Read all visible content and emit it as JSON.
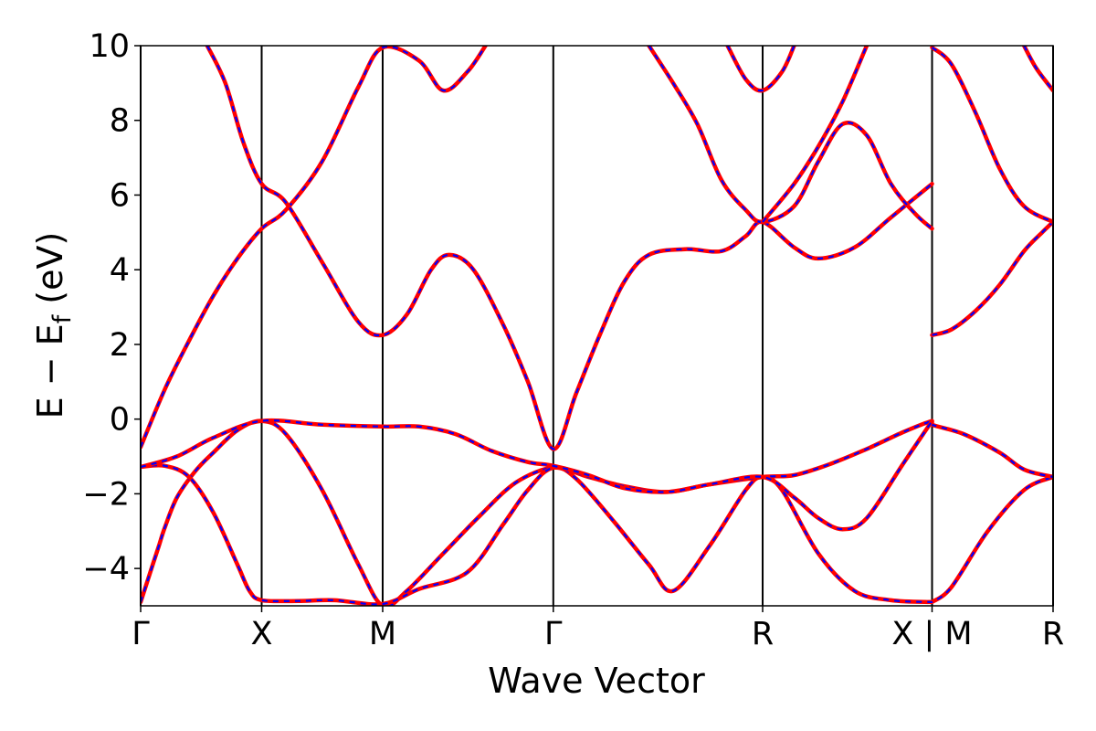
{
  "chart_data": {
    "type": "line",
    "title": "",
    "xlabel": "Wave Vector",
    "ylabel": {
      "main": "E − E",
      "sub": "f",
      "unit": " (eV)"
    },
    "ylim": [
      -5,
      10
    ],
    "yticks": [
      -4,
      -2,
      0,
      2,
      4,
      6,
      8,
      10
    ],
    "ytick_labels": [
      "−4",
      "−2",
      "0",
      "2",
      "4",
      "6",
      "8",
      "10"
    ],
    "kpoints": [
      {
        "label": "Γ",
        "x": 0.0
      },
      {
        "label": "X",
        "x": 1.0
      },
      {
        "label": "M",
        "x": 2.0
      },
      {
        "label": "Γ",
        "x": 3.41
      },
      {
        "label": "R",
        "x": 5.14
      },
      {
        "label": "X | M",
        "x": 6.54
      },
      {
        "label": "R",
        "x": 7.54
      }
    ],
    "xlim": [
      0,
      7.54
    ],
    "colors": {
      "primary": "#ff0000",
      "overlay": "#0000ff"
    },
    "series_style": "red solid with blue dashed overlay",
    "bands": [
      [
        [
          0,
          -4.9
        ],
        [
          0.05,
          -4.4
        ],
        [
          0.1,
          -3.9
        ],
        [
          0.15,
          -3.4
        ],
        [
          0.2,
          -2.9
        ],
        [
          0.3,
          -2.1
        ],
        [
          0.45,
          -1.4
        ],
        [
          0.6,
          -0.9
        ],
        [
          0.8,
          -0.3
        ],
        [
          1.0,
          -0.05
        ],
        [
          1.2,
          -0.4
        ],
        [
          1.5,
          -1.9
        ],
        [
          1.8,
          -3.9
        ],
        [
          2.0,
          -5.0
        ],
        [
          2.2,
          -4.6
        ],
        [
          2.5,
          -3.6
        ],
        [
          2.8,
          -2.6
        ],
        [
          3.1,
          -1.7
        ],
        [
          3.41,
          -1.3
        ],
        [
          3.6,
          -1.6
        ],
        [
          3.9,
          -2.7
        ],
        [
          4.2,
          -3.9
        ],
        [
          4.4,
          -4.6
        ],
        [
          4.7,
          -3.4
        ],
        [
          5.0,
          -1.9
        ],
        [
          5.14,
          -1.55
        ],
        [
          5.3,
          -1.9
        ],
        [
          5.6,
          -3.6
        ],
        [
          5.9,
          -4.6
        ],
        [
          6.2,
          -4.85
        ],
        [
          6.54,
          -4.9
        ],
        [
          6.54,
          -4.9
        ],
        [
          6.7,
          -4.5
        ],
        [
          7.0,
          -3.0
        ],
        [
          7.3,
          -1.9
        ],
        [
          7.54,
          -1.55
        ]
      ],
      [
        [
          0,
          -1.28
        ],
        [
          0.2,
          -1.25
        ],
        [
          0.4,
          -1.55
        ],
        [
          0.6,
          -2.5
        ],
        [
          0.8,
          -3.9
        ],
        [
          0.9,
          -4.6
        ],
        [
          1.0,
          -4.85
        ],
        [
          1.3,
          -4.87
        ],
        [
          1.6,
          -4.85
        ],
        [
          2.0,
          -4.95
        ],
        [
          2.3,
          -4.55
        ],
        [
          2.7,
          -4.1
        ],
        [
          3.0,
          -2.8
        ],
        [
          3.2,
          -1.9
        ],
        [
          3.41,
          -1.3
        ],
        [
          3.7,
          -1.55
        ],
        [
          4.0,
          -1.8
        ],
        [
          4.35,
          -1.95
        ],
        [
          4.7,
          -1.75
        ],
        [
          5.14,
          -1.55
        ],
        [
          5.4,
          -1.5
        ],
        [
          5.7,
          -1.2
        ],
        [
          6.0,
          -0.8
        ],
        [
          6.3,
          -0.35
        ],
        [
          6.54,
          -0.05
        ],
        [
          6.54,
          -0.15
        ],
        [
          6.8,
          -0.4
        ],
        [
          7.1,
          -0.9
        ],
        [
          7.3,
          -1.35
        ],
        [
          7.54,
          -1.55
        ]
      ],
      [
        [
          0,
          -1.28
        ],
        [
          0.3,
          -1.0
        ],
        [
          0.6,
          -0.5
        ],
        [
          1.0,
          -0.05
        ],
        [
          1.5,
          -0.15
        ],
        [
          2.0,
          -0.2
        ],
        [
          2.3,
          -0.2
        ],
        [
          2.6,
          -0.4
        ],
        [
          2.9,
          -0.85
        ],
        [
          3.2,
          -1.15
        ],
        [
          3.41,
          -1.25
        ],
        [
          3.7,
          -1.5
        ],
        [
          4.0,
          -1.85
        ],
        [
          4.35,
          -1.95
        ],
        [
          4.7,
          -1.75
        ],
        [
          5.14,
          -1.55
        ],
        [
          5.4,
          -2.1
        ],
        [
          5.6,
          -2.65
        ],
        [
          5.8,
          -2.95
        ],
        [
          6.0,
          -2.65
        ],
        [
          6.3,
          -1.2
        ],
        [
          6.54,
          -0.05
        ]
      ],
      [
        [
          0,
          -0.75
        ],
        [
          0.2,
          0.8
        ],
        [
          0.4,
          2.1
        ],
        [
          0.6,
          3.3
        ],
        [
          0.8,
          4.3
        ],
        [
          1.0,
          5.1
        ],
        [
          1.2,
          5.6
        ],
        [
          1.5,
          6.9
        ],
        [
          1.8,
          8.9
        ],
        [
          2.0,
          9.95
        ],
        [
          2.3,
          9.6
        ],
        [
          2.5,
          8.8
        ],
        [
          2.7,
          9.3
        ],
        [
          2.85,
          10.0
        ]
      ],
      [
        [
          0.55,
          10.0
        ],
        [
          0.7,
          9.0
        ],
        [
          0.85,
          7.4
        ],
        [
          1.0,
          6.3
        ],
        [
          1.2,
          5.8
        ],
        [
          1.5,
          4.2
        ],
        [
          1.8,
          2.6
        ],
        [
          2.0,
          2.25
        ],
        [
          2.2,
          2.8
        ],
        [
          2.4,
          4.0
        ],
        [
          2.55,
          4.4
        ],
        [
          2.75,
          4.0
        ],
        [
          3.0,
          2.5
        ],
        [
          3.2,
          1.0
        ],
        [
          3.41,
          -0.8
        ],
        [
          3.6,
          0.7
        ],
        [
          3.8,
          2.3
        ],
        [
          4.0,
          3.7
        ],
        [
          4.2,
          4.4
        ],
        [
          4.5,
          4.55
        ],
        [
          4.8,
          4.5
        ],
        [
          5.0,
          4.9
        ],
        [
          5.14,
          5.28
        ],
        [
          5.4,
          4.6
        ],
        [
          5.6,
          4.3
        ],
        [
          5.9,
          4.6
        ],
        [
          6.2,
          5.4
        ],
        [
          6.54,
          6.3
        ]
      ],
      [
        [
          4.2,
          10.0
        ],
        [
          4.4,
          9.0
        ],
        [
          4.6,
          7.9
        ],
        [
          4.8,
          6.4
        ],
        [
          5.0,
          5.6
        ],
        [
          5.14,
          5.28
        ],
        [
          5.4,
          5.7
        ],
        [
          5.6,
          6.9
        ],
        [
          5.8,
          7.9
        ],
        [
          6.0,
          7.6
        ],
        [
          6.2,
          6.3
        ],
        [
          6.4,
          5.5
        ],
        [
          6.54,
          5.1
        ]
      ],
      [
        [
          4.85,
          10.0
        ],
        [
          5.0,
          9.1
        ],
        [
          5.14,
          8.8
        ],
        [
          5.3,
          9.3
        ],
        [
          5.4,
          10.0
        ]
      ],
      [
        [
          5.14,
          5.28
        ],
        [
          5.4,
          6.3
        ],
        [
          5.6,
          7.3
        ],
        [
          5.8,
          8.5
        ],
        [
          6.0,
          10.0
        ]
      ],
      [
        [
          6.54,
          2.25
        ],
        [
          6.7,
          2.4
        ],
        [
          6.9,
          2.9
        ],
        [
          7.1,
          3.6
        ],
        [
          7.3,
          4.5
        ],
        [
          7.45,
          5.0
        ],
        [
          7.54,
          5.28
        ]
      ],
      [
        [
          6.54,
          9.95
        ],
        [
          6.7,
          9.5
        ],
        [
          6.9,
          8.2
        ],
        [
          7.1,
          6.7
        ],
        [
          7.3,
          5.7
        ],
        [
          7.54,
          5.28
        ]
      ],
      [
        [
          7.3,
          10.0
        ],
        [
          7.4,
          9.4
        ],
        [
          7.54,
          8.8
        ]
      ]
    ]
  }
}
